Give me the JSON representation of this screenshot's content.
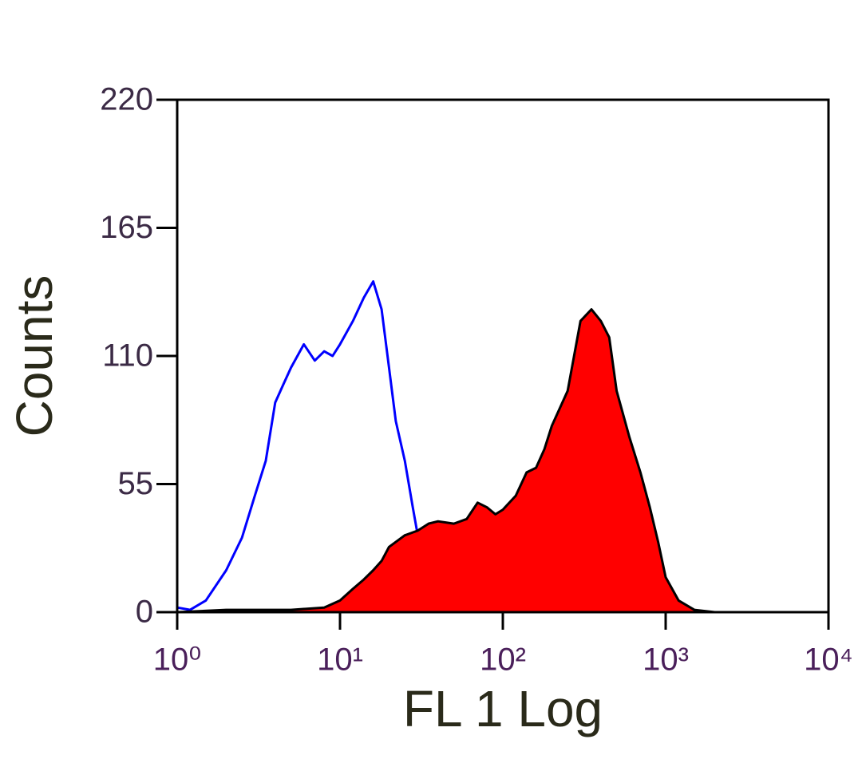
{
  "chart_data": {
    "type": "histogram-overlay",
    "x_label": "FL 1 Log",
    "y_label": "Counts",
    "xscale": "log",
    "xlim": [
      1,
      10000
    ],
    "xticks": [
      {
        "value": 1,
        "label": "10⁰"
      },
      {
        "value": 10,
        "label": "10¹"
      },
      {
        "value": 100,
        "label": "10²"
      },
      {
        "value": 1000,
        "label": "10³"
      },
      {
        "value": 10000,
        "label": "10⁴"
      }
    ],
    "ylim": [
      0,
      220
    ],
    "yticks": [
      0,
      55,
      110,
      165,
      220
    ],
    "series": [
      {
        "color": "#0000ff",
        "filled": false,
        "x": [
          1,
          1.2,
          1.5,
          2,
          2.5,
          3,
          3.5,
          4,
          4.5,
          5,
          6,
          7,
          8,
          9,
          10,
          12,
          14,
          16,
          18,
          20,
          22,
          25,
          28,
          32,
          36,
          40,
          50,
          60,
          80,
          100
        ],
        "values": [
          2,
          1,
          5,
          18,
          32,
          50,
          65,
          90,
          98,
          105,
          115,
          108,
          112,
          110,
          115,
          125,
          135,
          142,
          130,
          105,
          82,
          65,
          45,
          22,
          10,
          5,
          2,
          1,
          1,
          0
        ]
      },
      {
        "color": "#ff0000",
        "outline": "#000000",
        "filled": true,
        "x": [
          1,
          2,
          5,
          8,
          10,
          12,
          14,
          16,
          18,
          20,
          25,
          30,
          35,
          40,
          50,
          60,
          70,
          80,
          90,
          100,
          120,
          140,
          160,
          180,
          200,
          250,
          300,
          350,
          400,
          450,
          500,
          600,
          700,
          800,
          900,
          1000,
          1200,
          1500,
          2000
        ],
        "values": [
          0,
          1,
          1,
          2,
          5,
          10,
          14,
          18,
          22,
          28,
          33,
          35,
          38,
          39,
          38,
          40,
          47,
          45,
          42,
          44,
          50,
          60,
          62,
          70,
          80,
          95,
          125,
          130,
          125,
          118,
          95,
          75,
          60,
          45,
          30,
          15,
          5,
          1,
          0
        ]
      }
    ]
  }
}
